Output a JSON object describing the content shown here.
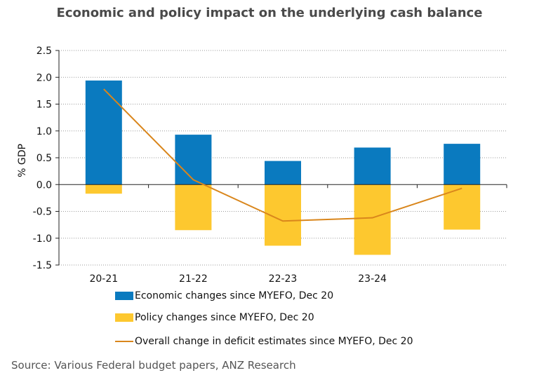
{
  "chart_data": {
    "type": "bar",
    "title": "Economic and policy impact on the underlying cash balance",
    "ylabel": "% GDP",
    "xlabel": "",
    "ylim": [
      -1.5,
      2.5
    ],
    "yticks": [
      "2.5",
      "2.0",
      "1.5",
      "1.0",
      "0.5",
      "0.0",
      "-0.5",
      "-1.0",
      "-1.5"
    ],
    "ytick_values": [
      2.5,
      2.0,
      1.5,
      1.0,
      0.5,
      0.0,
      -0.5,
      -1.0,
      -1.5
    ],
    "categories": [
      "20-21",
      "21-22",
      "22-23",
      "23-24",
      ""
    ],
    "series": [
      {
        "name": "Economic changes since MYEFO, Dec 20",
        "kind": "bar",
        "color": "#0a7abf",
        "values": [
          1.94,
          0.93,
          0.44,
          0.69,
          0.76
        ]
      },
      {
        "name": "Policy changes since MYEFO, Dec 20",
        "kind": "bar",
        "color": "#fdc82f",
        "values": [
          -0.17,
          -0.85,
          -1.14,
          -1.31,
          -0.84
        ]
      },
      {
        "name": "Overall change in deficit estimates since MYEFO, Dec 20",
        "kind": "line",
        "color": "#d9861c",
        "values": [
          1.78,
          0.09,
          -0.68,
          -0.62,
          -0.07
        ]
      }
    ],
    "grid": true,
    "legend_position": "bottom"
  },
  "source": "Source: Various Federal budget papers, ANZ Research"
}
